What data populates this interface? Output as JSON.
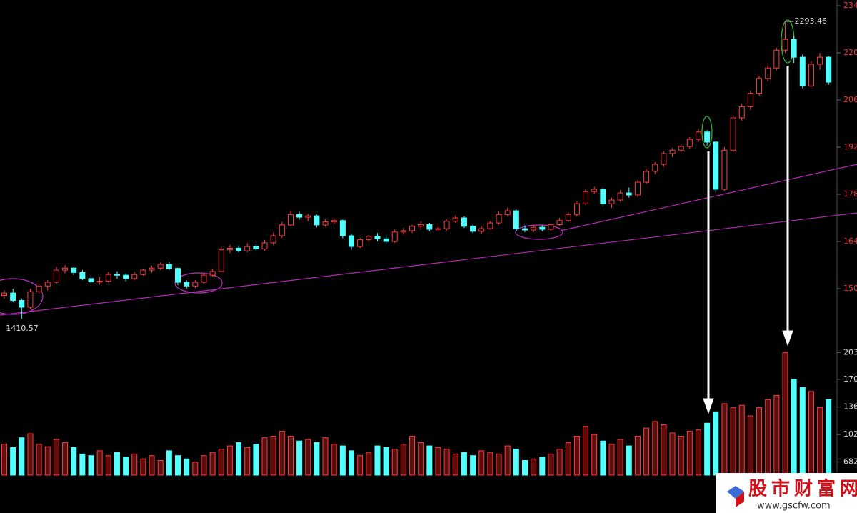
{
  "chart_data": [
    {
      "type": "candlestick",
      "up_color": "#ff3c3c",
      "down_color": "#54ffff",
      "open": [
        1480,
        1487,
        1465,
        1445,
        1491,
        1508,
        1519,
        1555,
        1561,
        1548,
        1530,
        1520,
        1522,
        1542,
        1540,
        1530,
        1542,
        1555,
        1561,
        1572,
        1560,
        1519,
        1508,
        1519,
        1540,
        1551,
        1615,
        1620,
        1612,
        1625,
        1618,
        1636,
        1657,
        1689,
        1720,
        1712,
        1716,
        1689,
        1698,
        1702,
        1657,
        1625,
        1645,
        1655,
        1648,
        1640,
        1668,
        1672,
        1685,
        1690,
        1676,
        1678,
        1700,
        1710,
        1685,
        1670,
        1678,
        1695,
        1720,
        1731,
        1678,
        1674,
        1682,
        1676,
        1690,
        1702,
        1720,
        1752,
        1788,
        1795,
        1752,
        1763,
        1784,
        1778,
        1816,
        1848,
        1869,
        1901,
        1911,
        1922,
        1943,
        1965,
        1935,
        1795,
        1911,
        2007,
        2040,
        2080,
        2124,
        2155,
        2208,
        2240,
        2187,
        2102,
        2166,
        2187
      ],
      "high": [
        1495,
        1500,
        1470,
        1500,
        1515,
        1525,
        1565,
        1570,
        1565,
        1555,
        1540,
        1535,
        1550,
        1552,
        1545,
        1550,
        1560,
        1568,
        1578,
        1580,
        1562,
        1525,
        1525,
        1545,
        1560,
        1625,
        1630,
        1628,
        1635,
        1632,
        1645,
        1665,
        1698,
        1730,
        1728,
        1722,
        1720,
        1705,
        1710,
        1705,
        1662,
        1650,
        1660,
        1665,
        1660,
        1675,
        1680,
        1690,
        1700,
        1695,
        1692,
        1705,
        1718,
        1715,
        1690,
        1685,
        1700,
        1728,
        1740,
        1735,
        1688,
        1690,
        1688,
        1695,
        1710,
        1728,
        1758,
        1795,
        1802,
        1798,
        1770,
        1792,
        1800,
        1822,
        1855,
        1875,
        1908,
        1918,
        1930,
        1950,
        1975,
        1970,
        1938,
        1920,
        2015,
        2048,
        2088,
        2132,
        2165,
        2215,
        2293.46,
        2250,
        2195,
        2175,
        2200,
        2190
      ],
      "low": [
        1470,
        1460,
        1410.57,
        1440,
        1485,
        1495,
        1515,
        1545,
        1540,
        1525,
        1515,
        1512,
        1518,
        1530,
        1522,
        1525,
        1538,
        1548,
        1555,
        1555,
        1510,
        1500,
        1502,
        1515,
        1535,
        1548,
        1605,
        1608,
        1608,
        1610,
        1612,
        1630,
        1650,
        1685,
        1705,
        1700,
        1682,
        1684,
        1690,
        1650,
        1615,
        1620,
        1638,
        1640,
        1632,
        1636,
        1660,
        1665,
        1675,
        1670,
        1670,
        1672,
        1695,
        1680,
        1665,
        1662,
        1675,
        1690,
        1715,
        1670,
        1668,
        1668,
        1670,
        1672,
        1685,
        1698,
        1715,
        1748,
        1780,
        1745,
        1740,
        1758,
        1770,
        1772,
        1810,
        1840,
        1862,
        1890,
        1905,
        1915,
        1935,
        1925,
        1785,
        1790,
        1905,
        1998,
        2030,
        2072,
        2115,
        2148,
        2200,
        2170,
        2095,
        2098,
        2150,
        2105
      ],
      "close": [
        1487,
        1465,
        1445,
        1491,
        1508,
        1519,
        1555,
        1561,
        1548,
        1530,
        1520,
        1522,
        1542,
        1540,
        1530,
        1542,
        1555,
        1561,
        1572,
        1560,
        1519,
        1508,
        1519,
        1540,
        1551,
        1615,
        1620,
        1612,
        1625,
        1618,
        1636,
        1657,
        1689,
        1720,
        1712,
        1716,
        1689,
        1698,
        1702,
        1657,
        1625,
        1645,
        1655,
        1648,
        1640,
        1668,
        1672,
        1685,
        1690,
        1676,
        1678,
        1700,
        1710,
        1685,
        1670,
        1678,
        1695,
        1720,
        1731,
        1678,
        1674,
        1682,
        1676,
        1690,
        1702,
        1720,
        1752,
        1788,
        1795,
        1752,
        1763,
        1784,
        1778,
        1816,
        1848,
        1869,
        1901,
        1911,
        1922,
        1943,
        1965,
        1935,
        1795,
        1911,
        2007,
        2040,
        2080,
        2124,
        2155,
        2208,
        2240,
        2187,
        2102,
        2166,
        2187,
        2113
      ],
      "ylim": [
        1360,
        2357
      ],
      "yticks": [
        {
          "value": 2340,
          "label": "234"
        },
        {
          "value": 2200,
          "label": "220"
        },
        {
          "value": 2060,
          "label": "206"
        },
        {
          "value": 1920,
          "label": "192"
        },
        {
          "value": 1780,
          "label": "178"
        },
        {
          "value": 1640,
          "label": "164"
        },
        {
          "value": 1500,
          "label": "150"
        }
      ],
      "annotations": [
        "2293.46",
        "1410.57"
      ]
    },
    {
      "type": "bar",
      "values": [
        900,
        860,
        980,
        1030,
        900,
        870,
        960,
        920,
        860,
        780,
        760,
        820,
        760,
        800,
        740,
        780,
        720,
        760,
        700,
        820,
        760,
        720,
        680,
        760,
        800,
        840,
        880,
        920,
        860,
        900,
        980,
        1000,
        1060,
        1000,
        940,
        960,
        920,
        980,
        900,
        880,
        820,
        760,
        800,
        880,
        860,
        840,
        900,
        1000,
        920,
        880,
        860,
        840,
        780,
        800,
        760,
        820,
        800,
        780,
        880,
        840,
        700,
        720,
        740,
        780,
        840,
        920,
        1000,
        1120,
        1020,
        940,
        900,
        960,
        880,
        1000,
        1100,
        1180,
        1140,
        1040,
        1000,
        1060,
        1080,
        1160,
        1300,
        1400,
        1350,
        1380,
        1250,
        1350,
        1450,
        1500,
        2030,
        1700,
        1600,
        1550,
        1350,
        1450
      ],
      "ylim": [
        520,
        2200
      ],
      "yticks": [
        {
          "value": 2030,
          "label": "203"
        },
        {
          "value": 1700,
          "label": "170"
        },
        {
          "value": 1360,
          "label": "136"
        },
        {
          "value": 1020,
          "label": "102"
        },
        682
      ]
    }
  ],
  "watermark": {
    "title": "股市财富网",
    "url": "www.gscfw.com"
  }
}
